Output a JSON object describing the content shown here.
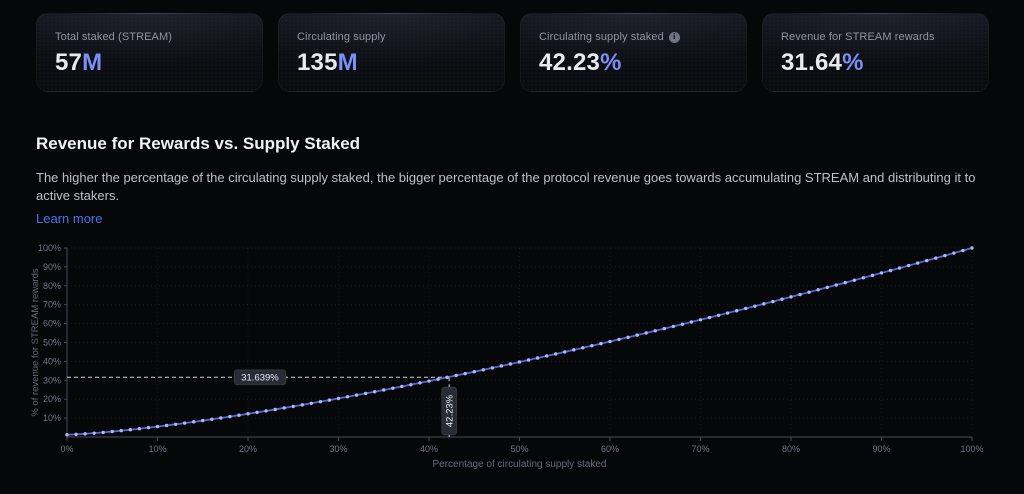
{
  "cards": [
    {
      "label": "Total staked (STREAM)",
      "value": "57",
      "suffix": "M"
    },
    {
      "label": "Circulating supply",
      "value": "135",
      "suffix": "M"
    },
    {
      "label": "Circulating supply staked",
      "value": "42.23",
      "suffix": "%",
      "info_icon": "info-circle"
    },
    {
      "label": "Revenue for STREAM rewards",
      "value": "31.64",
      "suffix": "%"
    }
  ],
  "section": {
    "title": "Revenue for Rewards vs. Supply Staked",
    "description": "The higher the percentage of the circulating supply staked, the bigger percentage of the protocol revenue goes towards accumulating STREAM and distributing it to active stakers.",
    "link_label": "Learn more"
  },
  "colors": {
    "accent_blue": "#7d8ef5",
    "link_blue": "#4a72f0",
    "line": "#5865cf",
    "marker": "#aeb8f4",
    "dashed": "#ccd1dc",
    "grid": "#8a93a6",
    "axis": "#454c59",
    "tick_text": "#707786",
    "axis_title_text": "#646b79",
    "badge_bg": "#272c37",
    "badge_text": "#e8eaf1"
  },
  "chart_data": {
    "type": "line",
    "title": "",
    "xlabel": "Percentage of circulating supply staked",
    "ylabel": "% of revenue for STREAM rewards",
    "xlim": [
      0,
      100
    ],
    "ylim": [
      0,
      100
    ],
    "grid": "dotted",
    "legend": "none",
    "x_ticks": [
      "0%",
      "10%",
      "20%",
      "30%",
      "40%",
      "50%",
      "60%",
      "70%",
      "80%",
      "90%",
      "100%"
    ],
    "y_ticks": [
      "10%",
      "20%",
      "30%",
      "40%",
      "50%",
      "60%",
      "70%",
      "80%",
      "90%",
      "100%"
    ],
    "series_name": "% of revenue for STREAM rewards",
    "x_start": 0,
    "x_step": 1,
    "y_values": [
      1.2,
      1.39,
      1.68,
      2.04,
      2.44,
      2.88,
      3.35,
      3.85,
      4.38,
      4.94,
      5.51,
      6.11,
      6.72,
      7.36,
      8.01,
      8.68,
      9.37,
      10.07,
      10.79,
      11.52,
      12.27,
      13.03,
      13.8,
      14.58,
      15.38,
      16.19,
      17.01,
      17.84,
      18.69,
      19.54,
      20.41,
      21.28,
      22.17,
      23.06,
      23.97,
      24.89,
      25.81,
      26.74,
      27.69,
      28.64,
      29.6,
      30.57,
      31.55,
      32.54,
      33.53,
      34.53,
      35.55,
      36.56,
      37.59,
      38.63,
      39.69,
      40.74,
      41.8,
      42.86,
      43.94,
      45.02,
      46.11,
      47.2,
      48.3,
      49.41,
      50.52,
      51.64,
      52.77,
      53.9,
      55.04,
      56.19,
      57.35,
      58.5,
      59.67,
      60.84,
      62.02,
      63.21,
      64.4,
      65.6,
      66.8,
      68.01,
      69.22,
      70.44,
      71.66,
      72.9,
      74.14,
      75.38,
      76.62,
      77.88,
      79.14,
      80.41,
      81.68,
      82.95,
      84.24,
      85.52,
      86.81,
      88.1,
      89.41,
      90.71,
      92.03,
      93.35,
      94.67,
      95.99,
      97.32,
      98.66,
      100
    ],
    "annotation": {
      "x": 42.23,
      "y": 31.639,
      "x_label": "42.23%",
      "y_label": "31.639%"
    }
  }
}
